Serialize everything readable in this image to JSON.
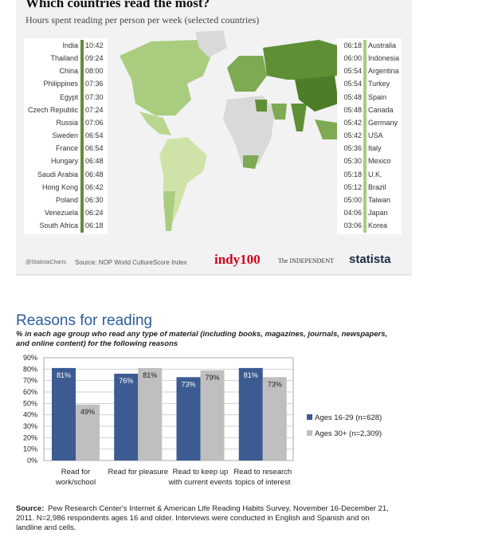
{
  "infographic": {
    "title": "Which countries read the most?",
    "subtitle": "Hours spent reading per person per week (selected countries)",
    "left": [
      {
        "country": "India",
        "time": "10:42"
      },
      {
        "country": "Thailand",
        "time": "09:24"
      },
      {
        "country": "China",
        "time": "08:00"
      },
      {
        "country": "Philippines",
        "time": "07:36"
      },
      {
        "country": "Egypt",
        "time": "07:30"
      },
      {
        "country": "Czech Republic",
        "time": "07:24"
      },
      {
        "country": "Russia",
        "time": "07:06"
      },
      {
        "country": "Sweden",
        "time": "06:54"
      },
      {
        "country": "France",
        "time": "06:54"
      },
      {
        "country": "Hungary",
        "time": "06:48"
      },
      {
        "country": "Saudi Arabia",
        "time": "06:48"
      },
      {
        "country": "Hong Kong",
        "time": "06:42"
      },
      {
        "country": "Poland",
        "time": "06:30"
      },
      {
        "country": "Venezuela",
        "time": "06:24"
      },
      {
        "country": "South Africa",
        "time": "06:18"
      }
    ],
    "right": [
      {
        "country": "Australia",
        "time": "06:18"
      },
      {
        "country": "Indonesia",
        "time": "06:00"
      },
      {
        "country": "Argentina",
        "time": "05:54"
      },
      {
        "country": "Turkey",
        "time": "05:54"
      },
      {
        "country": "Spain",
        "time": "05:48"
      },
      {
        "country": "Canada",
        "time": "05:48"
      },
      {
        "country": "Germany",
        "time": "05:42"
      },
      {
        "country": "USA",
        "time": "05:42"
      },
      {
        "country": "Italy",
        "time": "05:36"
      },
      {
        "country": "Mexico",
        "time": "05:30"
      },
      {
        "country": "U.K.",
        "time": "05:18"
      },
      {
        "country": "Brazil",
        "time": "05:12"
      },
      {
        "country": "Taiwan",
        "time": "05:00"
      },
      {
        "country": "Japan",
        "time": "04:06"
      },
      {
        "country": "Korea",
        "time": "03:06"
      }
    ],
    "handle": "@StatistaCharts",
    "source": "Source: NOP World CultureScore Index",
    "brand_indy": "indy100",
    "brand_independent": "The INDEPENDENT",
    "brand_statista": "statista"
  },
  "chart_data": {
    "type": "bar",
    "title": "Reasons for reading",
    "subtitle": "% in each age group who read any type of material (including books, magazines, journals, newspapers, and online content) for the following reasons",
    "categories": [
      "Read for work/school",
      "Read for pleasure",
      "Read to keep up with current events",
      "Read to research topics of interest"
    ],
    "series": [
      {
        "name": "Ages 16-29 (n=628)",
        "color": "#3b5b92",
        "values": [
          81,
          76,
          73,
          81
        ],
        "value_labels": [
          "81%",
          "76%",
          "73%",
          "81%"
        ]
      },
      {
        "name": "Ages 30+ (n=2,309)",
        "color": "#bfbfbf",
        "values": [
          49,
          81,
          79,
          73
        ],
        "value_labels": [
          "49%",
          "81%",
          "79%",
          "73%"
        ]
      }
    ],
    "ylim": [
      0,
      90
    ],
    "yticks": [
      {
        "value": 0,
        "label": "0%"
      },
      {
        "value": 10,
        "label": "10%"
      },
      {
        "value": 20,
        "label": "20%"
      },
      {
        "value": 30,
        "label": "30%"
      },
      {
        "value": 40,
        "label": "40%"
      },
      {
        "value": 50,
        "label": "50%"
      },
      {
        "value": 60,
        "label": "60%"
      },
      {
        "value": 70,
        "label": "70%"
      },
      {
        "value": 80,
        "label": "80%"
      },
      {
        "value": 90,
        "label": "90%"
      }
    ],
    "grid": true,
    "legend": "right",
    "source_label": "Source:",
    "source": "Pew Research Center's Internet & American Life Reading Habits Survey, November 16-December 21, 2011. N=2,986 respondents ages 16 and older. Interviews were conducted in English and Spanish and on landline and cells."
  }
}
